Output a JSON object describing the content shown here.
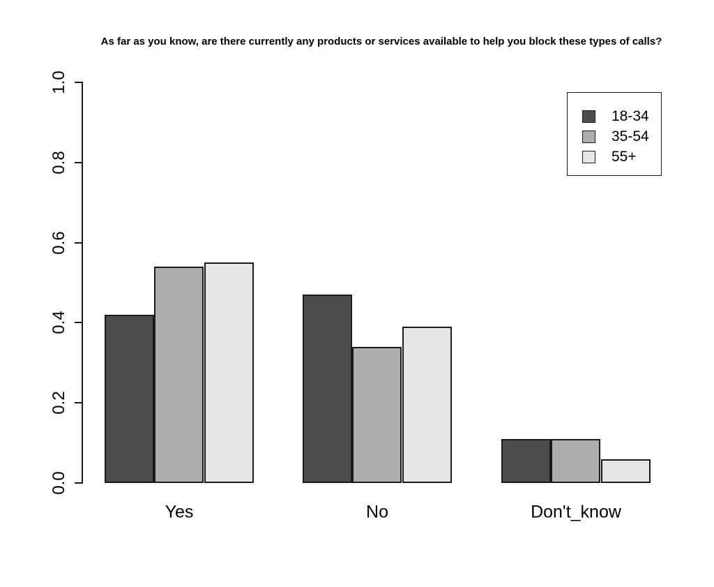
{
  "chart_data": {
    "type": "bar",
    "title": "As far as you know, are there currently any products or services available to help you block these types of calls?",
    "categories": [
      "Yes",
      "No",
      "Don't_know"
    ],
    "series": [
      {
        "name": "18-34",
        "color": "#4D4D4D",
        "values": [
          0.42,
          0.47,
          0.11
        ]
      },
      {
        "name": "35-54",
        "color": "#AEAEAE",
        "values": [
          0.54,
          0.34,
          0.11
        ]
      },
      {
        "name": "55+",
        "color": "#E6E6E6",
        "values": [
          0.55,
          0.39,
          0.06
        ]
      }
    ],
    "xlabel": "",
    "ylabel": "",
    "ylim": [
      0,
      1
    ],
    "y_ticks": [
      0,
      0.2,
      0.4,
      0.6,
      0.8,
      1.0
    ],
    "y_tick_labels": [
      "0.0",
      "0.2",
      "0.4",
      "0.6",
      "0.8",
      "1.0"
    ],
    "grid": false,
    "legend_position": "top-right",
    "bar_border_color": "#1A1A1A",
    "axis_color": "#1A1A1A",
    "background_color": "#FFFFFF"
  }
}
